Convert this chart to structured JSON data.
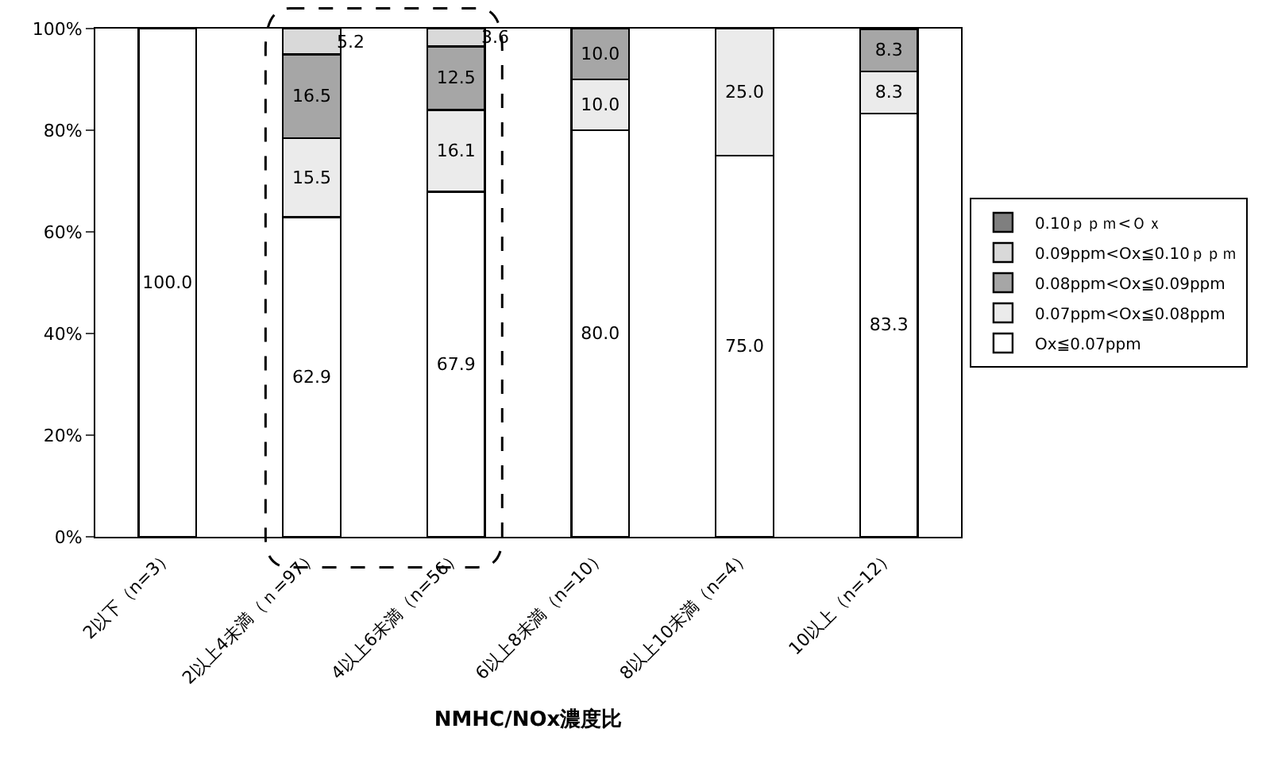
{
  "chart_data": {
    "type": "bar",
    "stacked": true,
    "xlabel": "NMHC/NOx濃度比",
    "categories": [
      "2以下（n=3）",
      "2以上4未満（ｎ=97）",
      "4以上6未満（n=56）",
      "6以上8未満（n=10）",
      "8以上10未満（n=4）",
      "10以上（n=12）"
    ],
    "series": [
      {
        "name": "Ox≦0.07ppm",
        "color": "#ffffff",
        "values": [
          100.0,
          62.9,
          67.9,
          80.0,
          75.0,
          83.3
        ],
        "value_labels": [
          "100.0",
          "62.9",
          "67.9",
          "80.0",
          "75.0",
          "83.3"
        ]
      },
      {
        "name": "0.07ppm<Ox≦0.08ppm",
        "color": "#ebebeb",
        "values": [
          null,
          15.5,
          16.1,
          10.0,
          25.0,
          8.3
        ],
        "value_labels": [
          null,
          "15.5",
          "16.1",
          "10.0",
          "25.0",
          "8.3"
        ]
      },
      {
        "name": "0.08ppm<Ox≦0.09ppm",
        "color": "#a6a6a6",
        "values": [
          null,
          16.5,
          12.5,
          10.0,
          null,
          8.3
        ],
        "value_labels": [
          null,
          "16.5",
          "12.5",
          "10.0",
          null,
          "8.3"
        ]
      },
      {
        "name": "0.09ppm<Ox≦0.10ｐｐｍ",
        "color": "#d9d9d9",
        "values": [
          null,
          5.2,
          3.6,
          null,
          null,
          null
        ],
        "value_labels": [
          null,
          "5.2",
          "3.6",
          null,
          null,
          null
        ]
      },
      {
        "name": "0.10ｐｐｍ<Ｏｘ",
        "color": "#7f7f7f",
        "values": [
          null,
          null,
          null,
          null,
          null,
          null
        ]
      }
    ],
    "ylim": [
      0,
      100
    ],
    "yticks": [
      {
        "value": 0,
        "label": "0%"
      },
      {
        "value": 20,
        "label": "20%"
      },
      {
        "value": 40,
        "label": "40%"
      },
      {
        "value": 60,
        "label": "60%"
      },
      {
        "value": 80,
        "label": "80%"
      },
      {
        "value": 100,
        "label": "100%"
      }
    ],
    "grid": false,
    "legend": "right"
  }
}
